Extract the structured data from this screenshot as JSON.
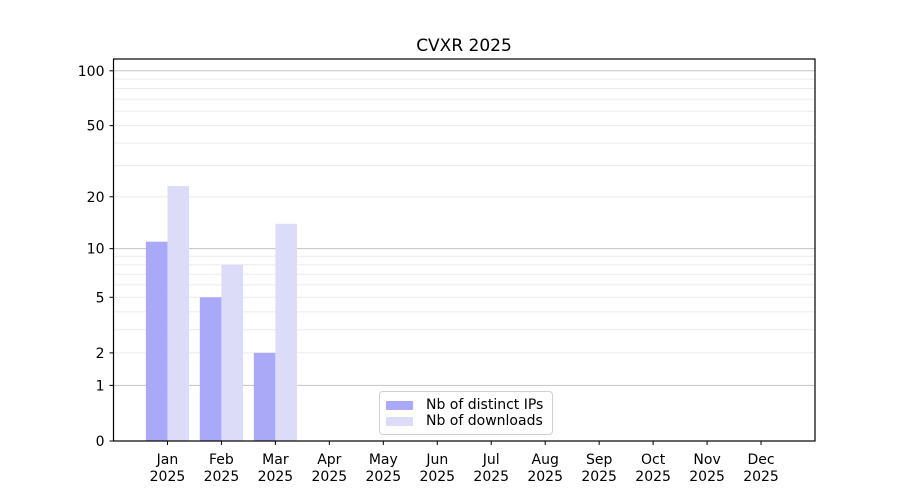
{
  "title": "CVXR 2025",
  "chart_data": {
    "type": "bar",
    "title": "CVXR 2025",
    "scale": "log1p",
    "categories": [
      "Jan 2025",
      "Feb 2025",
      "Mar 2025",
      "Apr 2025",
      "May 2025",
      "Jun 2025",
      "Jul 2025",
      "Aug 2025",
      "Sep 2025",
      "Oct 2025",
      "Nov 2025",
      "Dec 2025"
    ],
    "series": [
      {
        "name": "Nb of distinct IPs",
        "color": "#a9a9f7",
        "values": [
          11,
          5,
          2,
          0,
          0,
          0,
          0,
          0,
          0,
          0,
          0,
          0
        ]
      },
      {
        "name": "Nb of downloads",
        "color": "#dcdcf8",
        "values": [
          23,
          8,
          14,
          0,
          0,
          0,
          0,
          0,
          0,
          0,
          0,
          0
        ]
      }
    ],
    "yticks": [
      0,
      1,
      2,
      5,
      10,
      20,
      50,
      100
    ],
    "ylim": [
      0,
      116
    ],
    "grid": true,
    "legend_position": "lower center",
    "colors": {
      "major_grid": "#c3c3c3",
      "minor_grid": "#ebebeb",
      "spine": "#000000",
      "text": "#000000",
      "legend_border": "#d0d0d0",
      "background": "#ffffff"
    }
  }
}
